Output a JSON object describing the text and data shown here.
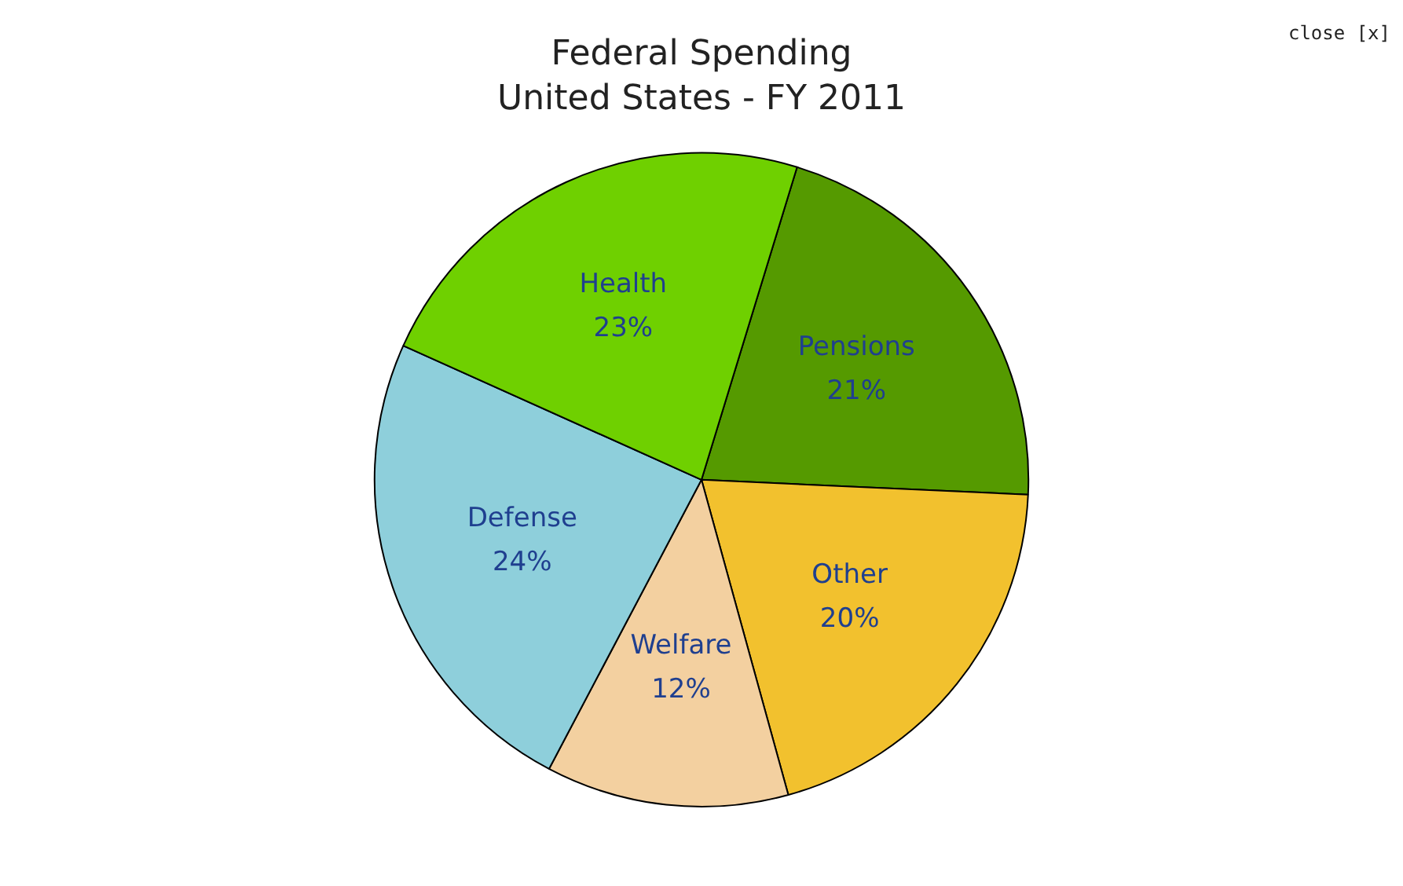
{
  "chart_data": {
    "type": "pie",
    "title": "Federal Spending",
    "subtitle": "United States - FY 2011",
    "categories": [
      "Pensions",
      "Other",
      "Welfare",
      "Defense",
      "Health"
    ],
    "values": [
      21,
      20,
      12,
      24,
      23
    ],
    "value_labels": [
      "21%",
      "20%",
      "12%",
      "24%",
      "23%"
    ],
    "colors": [
      "#559a00",
      "#f2c12e",
      "#f3d0a0",
      "#8ecfdb",
      "#6fd000"
    ],
    "annotations": [
      "close [x]"
    ],
    "legend": false
  }
}
